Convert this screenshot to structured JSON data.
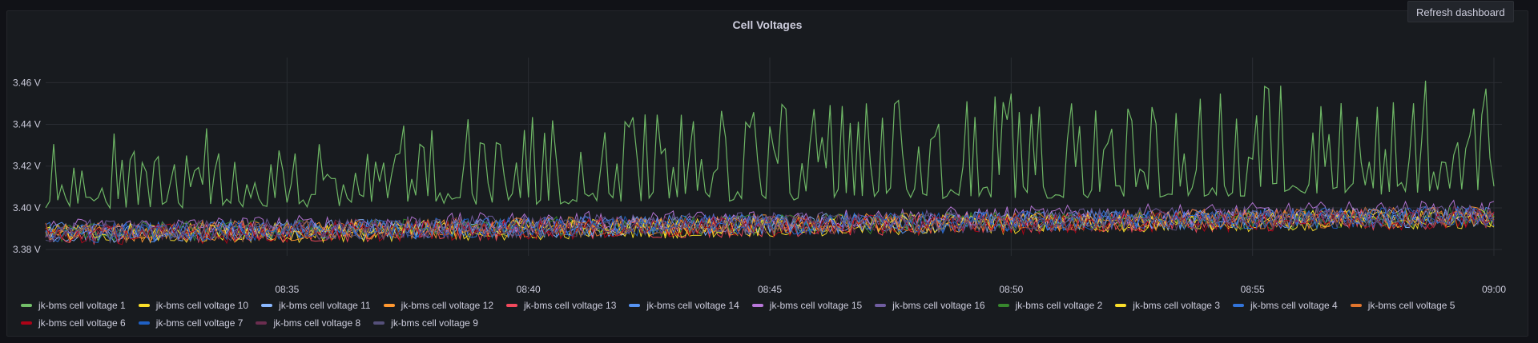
{
  "header": {
    "refresh_label": "Refresh dashboard"
  },
  "chart_data": {
    "type": "line",
    "title": "Cell Voltages",
    "xlabel": "",
    "ylabel": "",
    "x_range": [
      "08:30",
      "09:00"
    ],
    "x_ticks": [
      "08:35",
      "08:40",
      "08:45",
      "08:50",
      "08:55",
      "09:00"
    ],
    "y_ticks": [
      "3.38 V",
      "3.40 V",
      "3.42 V",
      "3.44 V",
      "3.46 V"
    ],
    "ylim": [
      3.377,
      3.472
    ],
    "unit": "V",
    "grid": true,
    "legend_position": "bottom",
    "series": [
      {
        "name": "jk-bms cell voltage 1",
        "color": "#73bf69",
        "base": 3.405,
        "trend": 0.008,
        "amp": 0.048
      },
      {
        "name": "jk-bms cell voltage 10",
        "color": "#fade2a",
        "base": 3.387,
        "trend": 0.008,
        "amp": 0.01
      },
      {
        "name": "jk-bms cell voltage 11",
        "color": "#8ab8ff",
        "base": 3.388,
        "trend": 0.008,
        "amp": 0.01
      },
      {
        "name": "jk-bms cell voltage 12",
        "color": "#ff9830",
        "base": 3.388,
        "trend": 0.008,
        "amp": 0.01
      },
      {
        "name": "jk-bms cell voltage 13",
        "color": "#f2495c",
        "base": 3.387,
        "trend": 0.008,
        "amp": 0.01
      },
      {
        "name": "jk-bms cell voltage 14",
        "color": "#5794f2",
        "base": 3.388,
        "trend": 0.008,
        "amp": 0.01
      },
      {
        "name": "jk-bms cell voltage 15",
        "color": "#b877d9",
        "base": 3.39,
        "trend": 0.009,
        "amp": 0.01
      },
      {
        "name": "jk-bms cell voltage 16",
        "color": "#705da0",
        "base": 3.389,
        "trend": 0.008,
        "amp": 0.01
      },
      {
        "name": "jk-bms cell voltage 2",
        "color": "#37872d",
        "base": 3.388,
        "trend": 0.008,
        "amp": 0.01
      },
      {
        "name": "jk-bms cell voltage 3",
        "color": "#fade2a",
        "base": 3.387,
        "trend": 0.008,
        "amp": 0.01
      },
      {
        "name": "jk-bms cell voltage 4",
        "color": "#3274d9",
        "base": 3.388,
        "trend": 0.008,
        "amp": 0.01
      },
      {
        "name": "jk-bms cell voltage 5",
        "color": "#e0752d",
        "base": 3.388,
        "trend": 0.008,
        "amp": 0.01
      },
      {
        "name": "jk-bms cell voltage 6",
        "color": "#ad0317",
        "base": 3.387,
        "trend": 0.008,
        "amp": 0.01
      },
      {
        "name": "jk-bms cell voltage 7",
        "color": "#1f60c4",
        "base": 3.388,
        "trend": 0.008,
        "amp": 0.01
      },
      {
        "name": "jk-bms cell voltage 8",
        "color": "#6b2d4f",
        "base": 3.388,
        "trend": 0.008,
        "amp": 0.01
      },
      {
        "name": "jk-bms cell voltage 9",
        "color": "#55507a",
        "base": 3.388,
        "trend": 0.008,
        "amp": 0.01
      }
    ]
  }
}
